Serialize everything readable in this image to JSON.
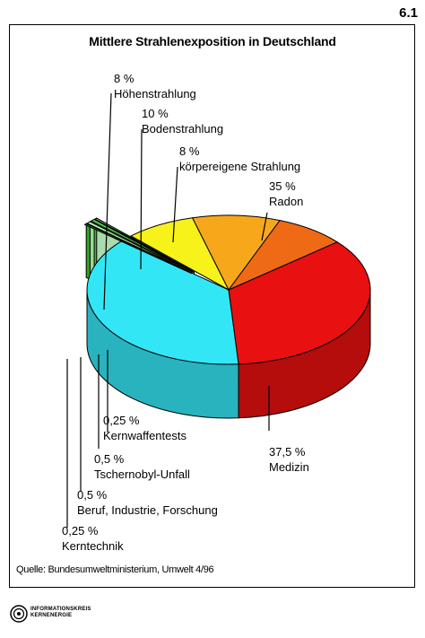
{
  "page_number": "6.1",
  "source_note": "Quelle: Bundesumweltministerium, Umwelt 4/96",
  "logo_text": [
    "INFORMATIONSKREIS",
    "KERNENERGIE"
  ],
  "chart_data": {
    "type": "pie",
    "title": "Mittlere Strahlenexposition in Deutschland",
    "slices": [
      {
        "label": "Radon",
        "value_label": "35 %",
        "value": 35,
        "color": "#e81010"
      },
      {
        "label": "Medizin",
        "value_label": "37,5 %",
        "value": 37.5,
        "color": "#33e6f5"
      },
      {
        "label": "Kerntechnik",
        "value_label": "0,25 %",
        "value": 0.25,
        "color": "#33b52a"
      },
      {
        "label": "Beruf, Industrie, Forschung",
        "value_label": "0,5 %",
        "value": 0.5,
        "color": "#aef0a8"
      },
      {
        "label": "Tschernobyl-Unfall",
        "value_label": "0,5 %",
        "value": 0.5,
        "color": "#4ccd44"
      },
      {
        "label": "Kernwaffentests",
        "value_label": "0,25 %",
        "value": 0.25,
        "color": "#bdf2c0"
      },
      {
        "label": "Höhenstrahlung",
        "value_label": "8 %",
        "value": 8,
        "color": "#f6f21a"
      },
      {
        "label": "Bodenstrahlung",
        "value_label": "10 %",
        "value": 10,
        "color": "#f7a81a"
      },
      {
        "label": "körpereigene Strahlung",
        "value_label": "8 %",
        "value": 8,
        "color": "#ef6a14"
      }
    ]
  }
}
